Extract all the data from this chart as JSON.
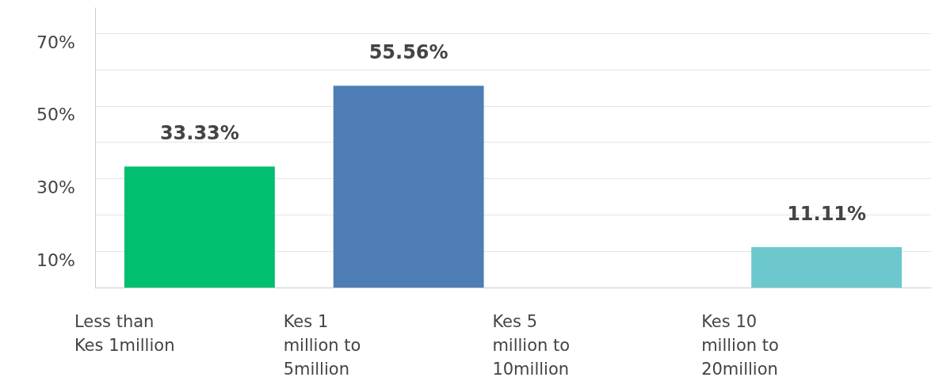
{
  "chart_data": {
    "type": "bar",
    "categories": [
      "Less than Kes 1million",
      "Kes 1 million to 5million",
      "Kes 5 million to 10million",
      "Kes 10 million to 20million"
    ],
    "values": [
      33.33,
      55.56,
      0,
      11.11
    ],
    "colors": [
      "#00bf6f",
      "#4f7db5",
      "#4f7db5",
      "#6cc8cc"
    ],
    "value_labels": [
      "33.33%",
      "55.56%",
      null,
      "11.11%"
    ],
    "ylim": [
      0,
      77
    ],
    "yticks": [
      {
        "value": 0,
        "label": null
      },
      {
        "value": 10,
        "label": "10%"
      },
      {
        "value": 20,
        "label": null
      },
      {
        "value": 30,
        "label": "30%"
      },
      {
        "value": 40,
        "label": null
      },
      {
        "value": 50,
        "label": "50%"
      },
      {
        "value": 60,
        "label": null
      },
      {
        "value": 70,
        "label": "70%"
      }
    ],
    "grid": "y"
  }
}
